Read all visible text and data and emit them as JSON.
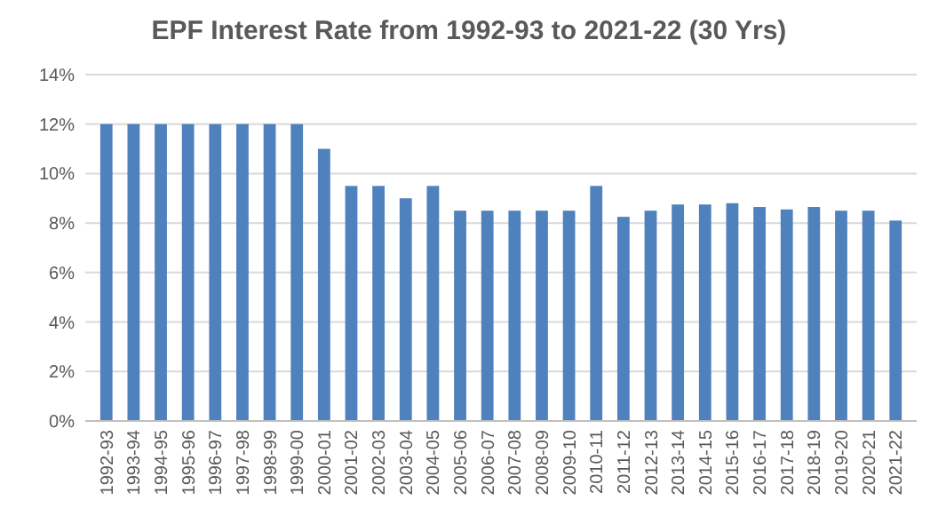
{
  "chart_data": {
    "type": "bar",
    "title": "EPF Interest Rate from 1992-93 to 2021-22 (30 Yrs)",
    "categories": [
      "1992-93",
      "1993-94",
      "1994-95",
      "1995-96",
      "1996-97",
      "1997-98",
      "1998-99",
      "1999-00",
      "2000-01",
      "2001-02",
      "2002-03",
      "2003-04",
      "2004-05",
      "2005-06",
      "2006-07",
      "2007-08",
      "2008-09",
      "2009-10",
      "2010-11",
      "2011-12",
      "2012-13",
      "2013-14",
      "2014-15",
      "2015-16",
      "2016-17",
      "2017-18",
      "2018-19",
      "2019-20",
      "2020-21",
      "2021-22"
    ],
    "values": [
      12,
      12,
      12,
      12,
      12,
      12,
      12,
      12,
      11,
      9.5,
      9.5,
      9,
      9.5,
      8.5,
      8.5,
      8.5,
      8.5,
      8.5,
      9.5,
      8.25,
      8.5,
      8.75,
      8.75,
      8.8,
      8.65,
      8.55,
      8.65,
      8.5,
      8.5,
      8.1
    ],
    "color": "#4f81bd",
    "ylim": [
      0,
      14
    ],
    "yticks": [
      {
        "value": 0,
        "label": "0%"
      },
      {
        "value": 2,
        "label": "2%"
      },
      {
        "value": 4,
        "label": "4%"
      },
      {
        "value": 6,
        "label": "6%"
      },
      {
        "value": 8,
        "label": "8%"
      },
      {
        "value": 10,
        "label": "10%"
      },
      {
        "value": 12,
        "label": "12%"
      },
      {
        "value": 14,
        "label": "14%"
      }
    ],
    "grid": "y"
  }
}
